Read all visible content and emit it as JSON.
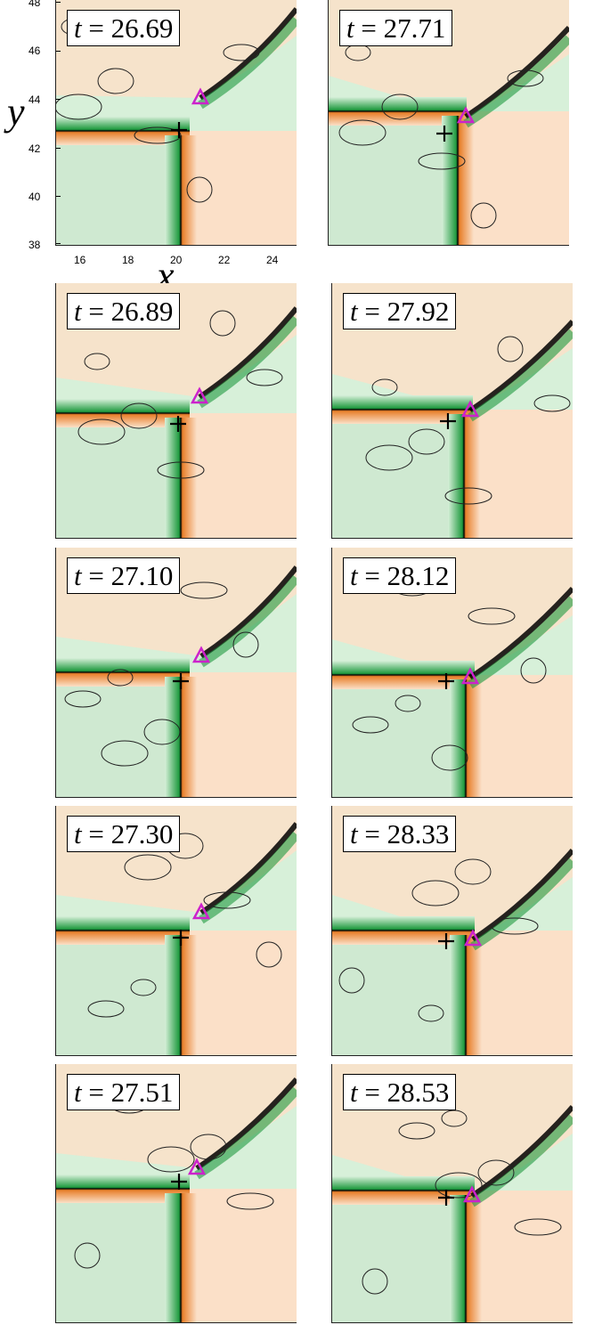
{
  "colors": {
    "orange": "#e87f2a",
    "green": "#1f9a3f",
    "light_green": "#d7f0d9",
    "light_orange": "#fbe0c8",
    "front": "#000000",
    "marker_triangle": "#cc22cc",
    "marker_cross": "#000000"
  },
  "axes": {
    "x_title": "x",
    "y_title": "y",
    "x_ticks": [
      "16",
      "18",
      "20",
      "22",
      "24"
    ],
    "y_ticks": [
      "38",
      "40",
      "42",
      "44",
      "46",
      "48"
    ]
  },
  "panels": [
    {
      "t_prefix": "t",
      "t_value": "= 26.69"
    },
    {
      "t_prefix": "t",
      "t_value": "= 27.71"
    },
    {
      "t_prefix": "t",
      "t_value": "= 26.89"
    },
    {
      "t_prefix": "t",
      "t_value": "= 27.92"
    },
    {
      "t_prefix": "t",
      "t_value": "= 27.10"
    },
    {
      "t_prefix": "t",
      "t_value": "= 28.12"
    },
    {
      "t_prefix": "t",
      "t_value": "= 27.30"
    },
    {
      "t_prefix": "t",
      "t_value": "= 28.33"
    },
    {
      "t_prefix": "t",
      "t_value": "= 27.51"
    },
    {
      "t_prefix": "t",
      "t_value": "= 28.53"
    }
  ],
  "markers": [
    {
      "cross": "+",
      "triangle": "triangle"
    }
  ]
}
